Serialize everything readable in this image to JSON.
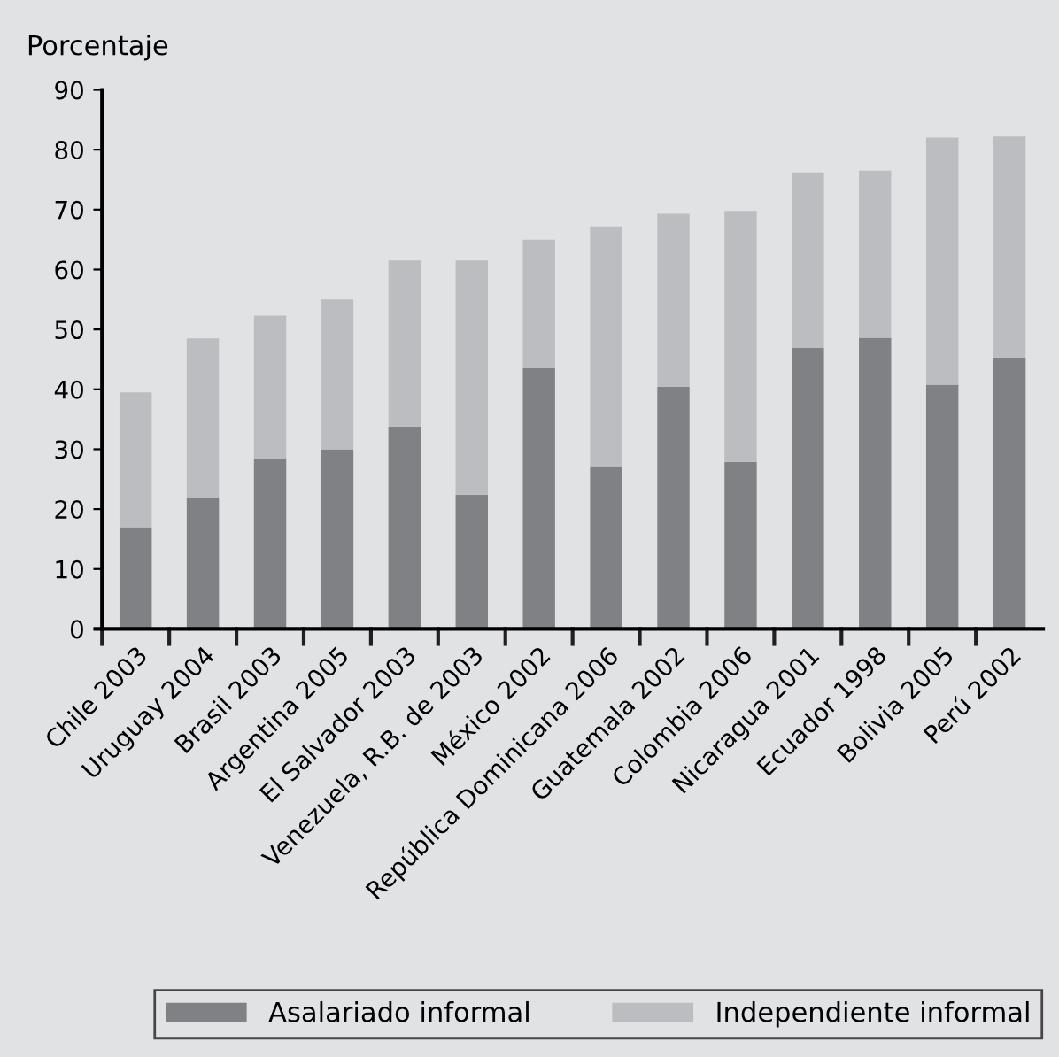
{
  "chart_data": {
    "type": "bar",
    "stacked": true,
    "ylabel": "Porcentaje",
    "categories": [
      "Chile 2003",
      "Uruguay 2004",
      "Brasil 2003",
      "Argentina 2005",
      "El Salvador 2003",
      "Venezuela, R.B. de 2003",
      "México 2002",
      "República Dominicana 2006",
      "Guatemala 2002",
      "Colombia 2006",
      "Nicaragua 2001",
      "Ecuador 1998",
      "Bolivia 2005",
      "Perú 2002"
    ],
    "series": [
      {
        "name": "Asalariado informal",
        "color": "#808184",
        "values": [
          17,
          21.8,
          28.3,
          30,
          33.8,
          22.4,
          43.5,
          27.2,
          40.4,
          27.9,
          46.9,
          48.6,
          40.8,
          45.3
        ]
      },
      {
        "name": "Independiente informal",
        "color": "#bcbdc0",
        "values": [
          22.5,
          26.7,
          24.0,
          25.0,
          27.7,
          39.1,
          21.5,
          40.0,
          28.9,
          41.9,
          29.3,
          27.9,
          41.2,
          36.9
        ]
      }
    ],
    "ylim": [
      0,
      90
    ],
    "yticks": [
      0,
      10,
      20,
      30,
      40,
      50,
      60,
      70,
      80,
      90
    ],
    "grid": false,
    "legend": "bottom"
  }
}
